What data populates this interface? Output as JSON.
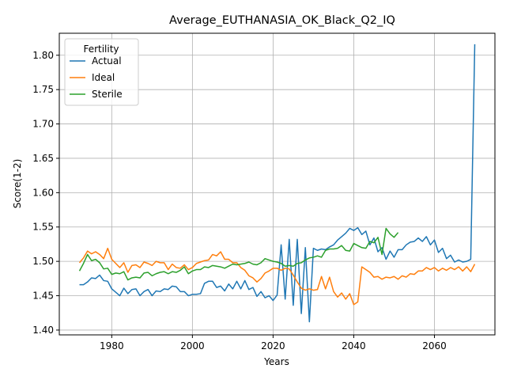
{
  "chart_data": {
    "type": "line",
    "title": "Average_EUTHANASIA_OK_Black_Q2_IQ",
    "xlabel": "Years",
    "ylabel": "Score(1-2)",
    "xlim": [
      1967,
      2075
    ],
    "ylim": [
      1.393,
      1.832
    ],
    "xticks": [
      1980,
      2000,
      2020,
      2040,
      2060
    ],
    "yticks": [
      1.4,
      1.45,
      1.5,
      1.55,
      1.6,
      1.65,
      1.7,
      1.75,
      1.8
    ],
    "grid": true,
    "legend": {
      "title": "Fertility",
      "placement": "top-left"
    },
    "series": [
      {
        "name": "Actual",
        "color": "#1f77b4",
        "x": [
          1972,
          1973,
          1974,
          1975,
          1976,
          1977,
          1978,
          1979,
          1980,
          1981,
          1982,
          1983,
          1984,
          1985,
          1986,
          1987,
          1988,
          1989,
          1990,
          1991,
          1992,
          1993,
          1994,
          1995,
          1996,
          1997,
          1998,
          1999,
          2000,
          2001,
          2002,
          2003,
          2004,
          2005,
          2006,
          2007,
          2008,
          2009,
          2010,
          2011,
          2012,
          2013,
          2014,
          2015,
          2016,
          2017,
          2018,
          2019,
          2020,
          2021,
          2022,
          2023,
          2024,
          2025,
          2026,
          2027,
          2028,
          2029,
          2030,
          2031,
          2032,
          2033,
          2034,
          2035,
          2036,
          2037,
          2038,
          2039,
          2040,
          2041,
          2042,
          2043,
          2044,
          2045,
          2046,
          2047,
          2048,
          2049,
          2050,
          2051,
          2052,
          2053,
          2054,
          2055,
          2056,
          2057,
          2058,
          2059,
          2060,
          2061,
          2062,
          2063,
          2064,
          2065,
          2066,
          2067,
          2068,
          2069,
          2070
        ],
        "y": [
          1.466,
          1.466,
          1.47,
          1.476,
          1.475,
          1.48,
          1.472,
          1.471,
          1.46,
          1.455,
          1.45,
          1.461,
          1.453,
          1.459,
          1.46,
          1.45,
          1.456,
          1.459,
          1.45,
          1.457,
          1.456,
          1.46,
          1.459,
          1.464,
          1.463,
          1.456,
          1.456,
          1.45,
          1.452,
          1.452,
          1.453,
          1.468,
          1.471,
          1.471,
          1.462,
          1.464,
          1.457,
          1.467,
          1.46,
          1.471,
          1.46,
          1.472,
          1.459,
          1.462,
          1.449,
          1.456,
          1.447,
          1.45,
          1.443,
          1.451,
          1.524,
          1.445,
          1.532,
          1.436,
          1.532,
          1.424,
          1.52,
          1.412,
          1.519,
          1.516,
          1.518,
          1.517,
          1.521,
          1.524,
          1.531,
          1.536,
          1.541,
          1.548,
          1.545,
          1.549,
          1.539,
          1.544,
          1.524,
          1.534,
          1.514,
          1.52,
          1.503,
          1.515,
          1.506,
          1.517,
          1.517,
          1.524,
          1.528,
          1.529,
          1.534,
          1.529,
          1.536,
          1.524,
          1.531,
          1.513,
          1.519,
          1.504,
          1.509,
          1.499,
          1.502,
          1.499,
          1.5,
          1.503,
          1.816
        ]
      },
      {
        "name": "Ideal",
        "color": "#ff7f0e",
        "x": [
          1972,
          1973,
          1974,
          1975,
          1976,
          1977,
          1978,
          1979,
          1980,
          1981,
          1982,
          1983,
          1984,
          1985,
          1986,
          1987,
          1988,
          1989,
          1990,
          1991,
          1992,
          1993,
          1994,
          1995,
          1996,
          1997,
          1998,
          1999,
          2000,
          2001,
          2002,
          2003,
          2004,
          2005,
          2006,
          2007,
          2008,
          2009,
          2010,
          2011,
          2012,
          2013,
          2014,
          2015,
          2016,
          2017,
          2018,
          2019,
          2020,
          2021,
          2022,
          2023,
          2024,
          2025,
          2026,
          2027,
          2028,
          2029,
          2030,
          2031,
          2032,
          2033,
          2034,
          2035,
          2036,
          2037,
          2038,
          2039,
          2040,
          2041,
          2042,
          2043,
          2044,
          2045,
          2046,
          2047,
          2048,
          2049,
          2050,
          2051,
          2052,
          2053,
          2054,
          2055,
          2056,
          2057,
          2058,
          2059,
          2060,
          2061,
          2062,
          2063,
          2064,
          2065,
          2066,
          2067,
          2068,
          2069,
          2070
        ],
        "y": [
          1.498,
          1.505,
          1.515,
          1.511,
          1.514,
          1.51,
          1.504,
          1.519,
          1.503,
          1.497,
          1.491,
          1.498,
          1.484,
          1.494,
          1.495,
          1.491,
          1.499,
          1.497,
          1.494,
          1.5,
          1.498,
          1.498,
          1.488,
          1.496,
          1.491,
          1.49,
          1.495,
          1.488,
          1.491,
          1.497,
          1.499,
          1.501,
          1.502,
          1.51,
          1.508,
          1.514,
          1.503,
          1.503,
          1.498,
          1.498,
          1.491,
          1.487,
          1.479,
          1.476,
          1.47,
          1.475,
          1.483,
          1.486,
          1.49,
          1.49,
          1.487,
          1.49,
          1.489,
          1.48,
          1.47,
          1.461,
          1.458,
          1.46,
          1.458,
          1.459,
          1.478,
          1.46,
          1.477,
          1.456,
          1.448,
          1.454,
          1.445,
          1.453,
          1.437,
          1.441,
          1.492,
          1.488,
          1.484,
          1.477,
          1.478,
          1.474,
          1.477,
          1.476,
          1.478,
          1.474,
          1.479,
          1.477,
          1.482,
          1.481,
          1.486,
          1.486,
          1.491,
          1.488,
          1.491,
          1.486,
          1.49,
          1.487,
          1.491,
          1.488,
          1.492,
          1.486,
          1.492,
          1.485,
          1.496
        ]
      },
      {
        "name": "Sterile",
        "color": "#2ca02c",
        "x": [
          1972,
          1973,
          1974,
          1975,
          1976,
          1977,
          1978,
          1979,
          1980,
          1981,
          1982,
          1983,
          1984,
          1985,
          1986,
          1987,
          1988,
          1989,
          1990,
          1991,
          1992,
          1993,
          1994,
          1995,
          1996,
          1997,
          1998,
          1999,
          2000,
          2001,
          2002,
          2003,
          2004,
          2005,
          2006,
          2007,
          2008,
          2009,
          2010,
          2011,
          2012,
          2013,
          2014,
          2015,
          2016,
          2017,
          2018,
          2019,
          2020,
          2021,
          2022,
          2023,
          2024,
          2025,
          2026,
          2027,
          2028,
          2029,
          2030,
          2031,
          2032,
          2033,
          2034,
          2035,
          2036,
          2037,
          2038,
          2039,
          2040,
          2041,
          2042,
          2043,
          2044,
          2045,
          2046,
          2047,
          2048,
          2049,
          2050,
          2051
        ],
        "y": [
          1.486,
          1.497,
          1.51,
          1.501,
          1.503,
          1.498,
          1.489,
          1.49,
          1.481,
          1.483,
          1.482,
          1.485,
          1.473,
          1.476,
          1.477,
          1.476,
          1.483,
          1.484,
          1.479,
          1.482,
          1.484,
          1.485,
          1.482,
          1.485,
          1.484,
          1.487,
          1.492,
          1.482,
          1.486,
          1.488,
          1.488,
          1.492,
          1.491,
          1.494,
          1.493,
          1.492,
          1.49,
          1.493,
          1.496,
          1.495,
          1.496,
          1.497,
          1.499,
          1.496,
          1.495,
          1.498,
          1.504,
          1.502,
          1.5,
          1.499,
          1.497,
          1.493,
          1.494,
          1.493,
          1.497,
          1.498,
          1.502,
          1.505,
          1.506,
          1.508,
          1.506,
          1.516,
          1.518,
          1.518,
          1.519,
          1.523,
          1.516,
          1.515,
          1.526,
          1.523,
          1.52,
          1.519,
          1.529,
          1.527,
          1.535,
          1.51,
          1.548,
          1.54,
          1.535,
          1.542
        ]
      }
    ]
  }
}
